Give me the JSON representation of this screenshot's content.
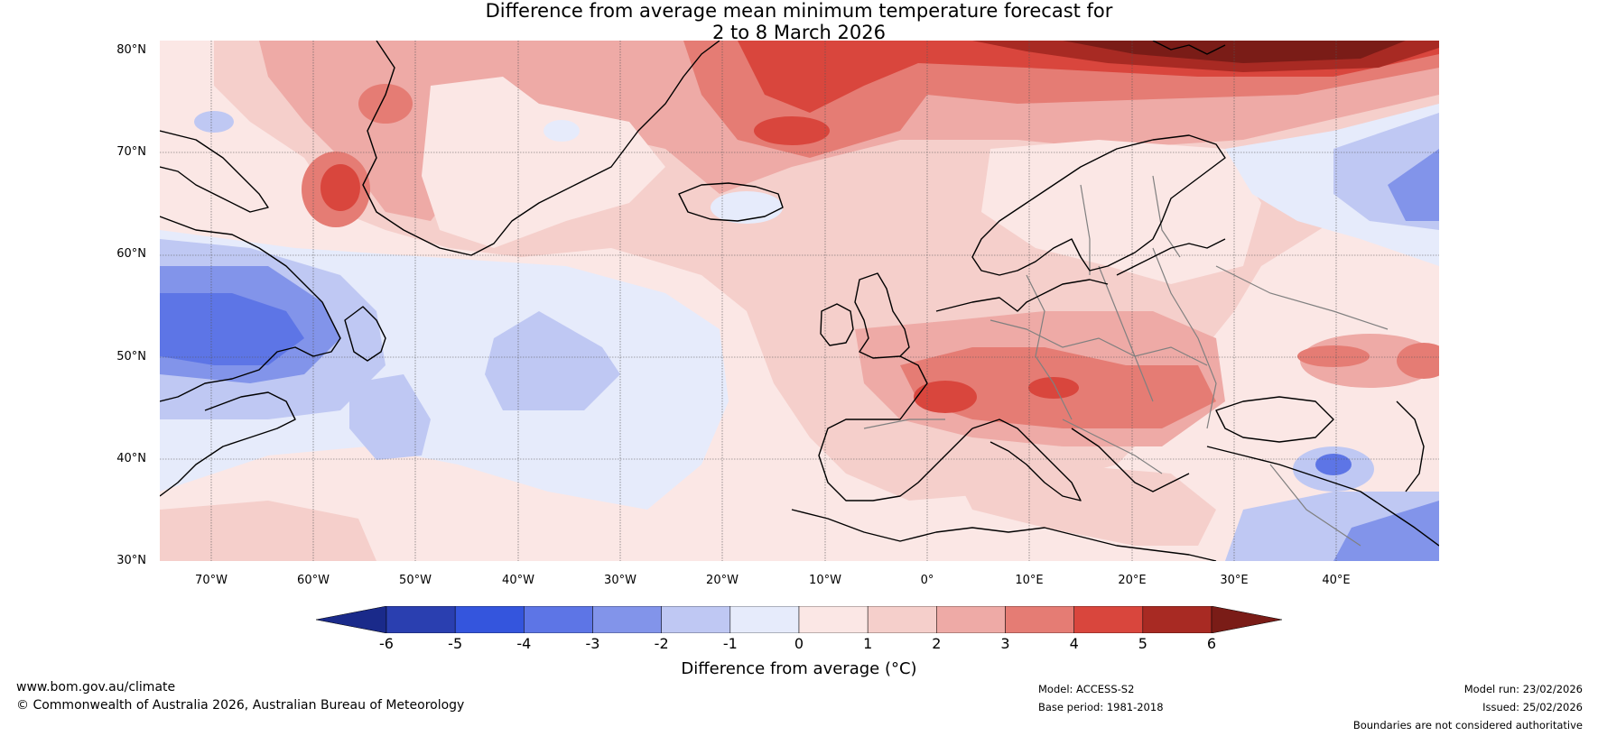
{
  "title": {
    "line1": "Difference from average mean minimum temperature forecast for",
    "line2": "2 to 8 March 2026"
  },
  "map": {
    "lat_labels": [
      "80°N",
      "70°N",
      "60°N",
      "50°N",
      "40°N",
      "30°N"
    ],
    "lon_labels": [
      "70°W",
      "60°W",
      "50°W",
      "40°W",
      "30°W",
      "20°W",
      "10°W",
      "0°",
      "10°E",
      "20°E",
      "30°E",
      "40°E"
    ],
    "lat_range": [
      30,
      81
    ],
    "lon_range": [
      -75,
      50
    ]
  },
  "legend": {
    "ticks": [
      "-6",
      "-5",
      "-4",
      "-3",
      "-2",
      "-1",
      "0",
      "1",
      "2",
      "3",
      "4",
      "5",
      "6"
    ],
    "colors": [
      "#1a2a8a",
      "#2a3fb0",
      "#3455dd",
      "#5d75e6",
      "#8294ea",
      "#bfc8f3",
      "#e6ebfb",
      "#fbe7e5",
      "#f5cfcb",
      "#eeaaa6",
      "#e57c74",
      "#d9463d",
      "#a82a23",
      "#7a1c17"
    ],
    "label": "Difference from average (°C)"
  },
  "footer": {
    "website": "www.bom.gov.au/climate",
    "copyright": "© Commonwealth of Australia 2026, Australian Bureau of Meteorology",
    "model": "Model: ACCESS-S2",
    "base_period": "Base period: 1981-2018",
    "model_run": "Model run: 23/02/2026",
    "issued": "Issued: 25/02/2026",
    "boundaries_note": "Boundaries are not considered authoritative"
  },
  "colors": {
    "coastline": "#000000",
    "borders": "#808080",
    "gridlines": "#555555"
  }
}
